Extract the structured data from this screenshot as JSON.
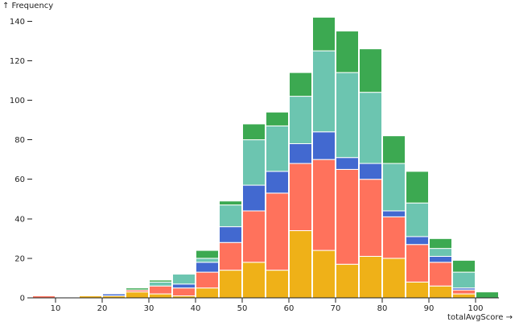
{
  "chart_data": {
    "type": "bar",
    "stacked": true,
    "title": "",
    "ylabel": "↑ Frequency",
    "xlabel": "totalAvgScore →",
    "xlim": [
      5,
      105
    ],
    "ylim": [
      0,
      145
    ],
    "bin_width": 5,
    "x_ticks": [
      10,
      20,
      30,
      40,
      50,
      60,
      70,
      80,
      90,
      100
    ],
    "y_ticks": [
      0,
      20,
      40,
      60,
      80,
      100,
      120,
      140
    ],
    "bins": [
      [
        5,
        10
      ],
      [
        10,
        15
      ],
      [
        15,
        20
      ],
      [
        20,
        25
      ],
      [
        25,
        30
      ],
      [
        30,
        35
      ],
      [
        35,
        40
      ],
      [
        40,
        45
      ],
      [
        45,
        50
      ],
      [
        50,
        55
      ],
      [
        55,
        60
      ],
      [
        60,
        65
      ],
      [
        65,
        70
      ],
      [
        70,
        75
      ],
      [
        75,
        80
      ],
      [
        80,
        85
      ],
      [
        85,
        90
      ],
      [
        90,
        95
      ],
      [
        95,
        100
      ],
      [
        100,
        105
      ]
    ],
    "series": [
      {
        "name": "yellow",
        "color": "#EFB118",
        "values": [
          0,
          0,
          1,
          1,
          3,
          2,
          1,
          5,
          14,
          18,
          14,
          34,
          24,
          17,
          21,
          20,
          8,
          6,
          2,
          0
        ]
      },
      {
        "name": "orange",
        "color": "#FF725C",
        "values": [
          1,
          0,
          0,
          0,
          1,
          4,
          4,
          8,
          14,
          26,
          39,
          34,
          46,
          48,
          39,
          21,
          19,
          12,
          2,
          0
        ]
      },
      {
        "name": "blue",
        "color": "#4269D0",
        "values": [
          0,
          0,
          0,
          1,
          0,
          0,
          2,
          5,
          8,
          13,
          11,
          10,
          14,
          6,
          8,
          3,
          4,
          3,
          1,
          0
        ]
      },
      {
        "name": "teal",
        "color": "#6CC5B0",
        "values": [
          0,
          0,
          0,
          0,
          0,
          2,
          5,
          2,
          11,
          23,
          23,
          24,
          41,
          43,
          36,
          24,
          17,
          4,
          8,
          0
        ]
      },
      {
        "name": "green",
        "color": "#3CA951",
        "values": [
          0,
          0,
          0,
          0,
          1,
          1,
          0,
          4,
          2,
          8,
          7,
          12,
          17,
          21,
          22,
          14,
          16,
          5,
          6,
          3
        ]
      }
    ]
  }
}
